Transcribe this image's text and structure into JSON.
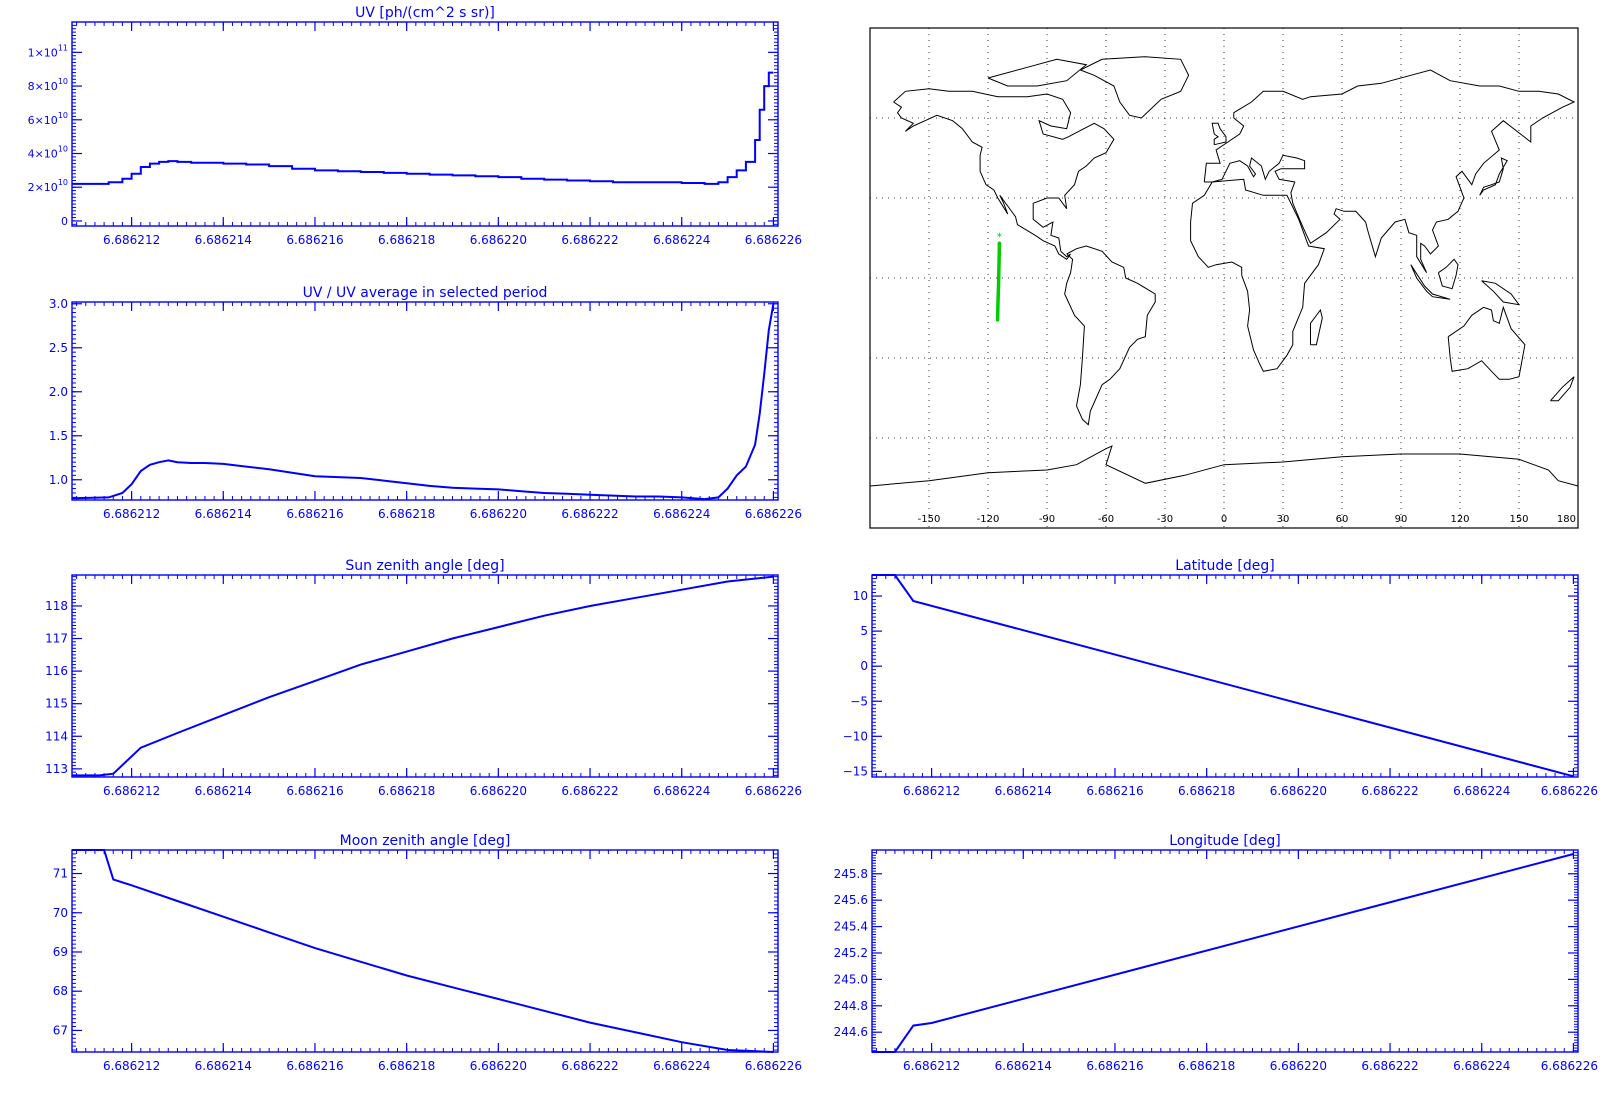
{
  "colors": {
    "plot": "#0000ff",
    "map_outline": "#000000",
    "track": "#00cc00",
    "background": "#ffffff"
  },
  "shared_x": {
    "ticks": [
      6.686212,
      6.686214,
      6.686216,
      6.686218,
      6.68622,
      6.686222,
      6.686224,
      6.686226
    ],
    "tick_labels": [
      "6.686212",
      "6.686214",
      "6.686216",
      "6.686218",
      "6.686220",
      "6.686222",
      "6.686224",
      "6.686226"
    ]
  },
  "chart_data": [
    {
      "id": "uv",
      "type": "line",
      "title": "UV [ph/(cm^2 s sr)]",
      "xlim": [
        6.6862107,
        6.6862261
      ],
      "ylim": [
        -3000000000.0,
        118000000000.0
      ],
      "yticks": [
        0,
        20000000000.0,
        40000000000.0,
        60000000000.0,
        80000000000.0,
        100000000000.0
      ],
      "ytick_labels": [
        {
          "base": "0",
          "exp": ""
        },
        {
          "base": "2×10",
          "exp": "10"
        },
        {
          "base": "4×10",
          "exp": "10"
        },
        {
          "base": "6×10",
          "exp": "10"
        },
        {
          "base": "8×10",
          "exp": "10"
        },
        {
          "base": "1×10",
          "exp": "11"
        }
      ],
      "step": true,
      "series": [
        {
          "x": [
            6.6862107,
            6.6862115,
            6.6862118,
            6.686212,
            6.6862122,
            6.6862124,
            6.6862126,
            6.6862128,
            6.686213,
            6.6862133,
            6.6862136,
            6.686214,
            6.6862145,
            6.686215,
            6.6862155,
            6.686216,
            6.6862165,
            6.686217,
            6.6862175,
            6.686218,
            6.6862185,
            6.686219,
            6.6862195,
            6.68622,
            6.6862205,
            6.686221,
            6.6862215,
            6.686222,
            6.6862225,
            6.686223,
            6.6862235,
            6.686224,
            6.6862245,
            6.6862248,
            6.686225,
            6.6862252,
            6.6862254,
            6.6862256,
            6.6862257,
            6.6862258,
            6.6862259,
            6.686226
          ],
          "y": [
            22000000000.0,
            23000000000.0,
            25000000000.0,
            28000000000.0,
            32000000000.0,
            34000000000.0,
            35000000000.0,
            35500000000.0,
            35000000000.0,
            34500000000.0,
            34500000000.0,
            34000000000.0,
            33500000000.0,
            32500000000.0,
            31000000000.0,
            30000000000.0,
            29500000000.0,
            29000000000.0,
            28500000000.0,
            28000000000.0,
            27500000000.0,
            27000000000.0,
            26500000000.0,
            26000000000.0,
            25000000000.0,
            24500000000.0,
            24000000000.0,
            23500000000.0,
            23000000000.0,
            23000000000.0,
            23000000000.0,
            22500000000.0,
            22000000000.0,
            23000000000.0,
            26000000000.0,
            30000000000.0,
            35000000000.0,
            48000000000.0,
            66000000000.0,
            80000000000.0,
            88000000000.0,
            88000000000.0
          ]
        }
      ]
    },
    {
      "id": "uv-ratio",
      "type": "line",
      "title": "UV / UV average in selected period",
      "xlim": [
        6.6862107,
        6.6862261
      ],
      "ylim": [
        0.77,
        3.02
      ],
      "yticks": [
        1.0,
        1.5,
        2.0,
        2.5,
        3.0
      ],
      "ytick_labels": [
        "1.0",
        "1.5",
        "2.0",
        "2.5",
        "3.0"
      ],
      "series": [
        {
          "x": [
            6.6862107,
            6.6862115,
            6.6862118,
            6.686212,
            6.6862122,
            6.6862124,
            6.6862126,
            6.6862128,
            6.686213,
            6.6862133,
            6.6862136,
            6.686214,
            6.6862145,
            6.686215,
            6.6862155,
            6.686216,
            6.6862165,
            6.686217,
            6.6862175,
            6.686218,
            6.6862185,
            6.686219,
            6.6862195,
            6.68622,
            6.6862205,
            6.686221,
            6.6862215,
            6.686222,
            6.6862225,
            6.686223,
            6.6862235,
            6.686224,
            6.6862245,
            6.6862248,
            6.686225,
            6.6862252,
            6.6862254,
            6.6862256,
            6.6862257,
            6.6862258,
            6.6862259,
            6.686226
          ],
          "y": [
            0.79,
            0.8,
            0.85,
            0.95,
            1.1,
            1.17,
            1.2,
            1.22,
            1.2,
            1.19,
            1.19,
            1.18,
            1.15,
            1.12,
            1.08,
            1.04,
            1.03,
            1.02,
            0.99,
            0.96,
            0.93,
            0.91,
            0.9,
            0.89,
            0.87,
            0.85,
            0.84,
            0.83,
            0.82,
            0.81,
            0.81,
            0.8,
            0.78,
            0.8,
            0.9,
            1.05,
            1.15,
            1.4,
            1.75,
            2.2,
            2.7,
            3.0
          ]
        }
      ]
    },
    {
      "id": "sun-zenith",
      "type": "line",
      "title": "Sun zenith angle [deg]",
      "xlim": [
        6.6862107,
        6.6862261
      ],
      "ylim": [
        112.75,
        118.95
      ],
      "yticks": [
        113,
        114,
        115,
        116,
        117,
        118
      ],
      "ytick_labels": [
        "113",
        "114",
        "115",
        "116",
        "117",
        "118"
      ],
      "series": [
        {
          "x": [
            6.6862107,
            6.6862113,
            6.6862116,
            6.6862122,
            6.686213,
            6.686214,
            6.686215,
            6.686216,
            6.686217,
            6.686218,
            6.686219,
            6.68622,
            6.686221,
            6.686222,
            6.686223,
            6.686224,
            6.686225,
            6.686226
          ],
          "y": [
            112.8,
            112.8,
            112.85,
            113.65,
            114.1,
            114.65,
            115.2,
            115.7,
            116.2,
            116.6,
            117.0,
            117.35,
            117.7,
            118.0,
            118.25,
            118.5,
            118.75,
            118.9
          ]
        }
      ]
    },
    {
      "id": "moon-zenith",
      "type": "line",
      "title": "Moon zenith angle [deg]",
      "xlim": [
        6.6862107,
        6.6862261
      ],
      "ylim": [
        66.45,
        71.6
      ],
      "yticks": [
        67,
        68,
        69,
        70,
        71
      ],
      "ytick_labels": [
        "67",
        "68",
        "69",
        "70",
        "71"
      ],
      "series": [
        {
          "x": [
            6.6862107,
            6.6862112,
            6.6862114,
            6.6862116,
            6.686212,
            6.686213,
            6.686214,
            6.686215,
            6.686216,
            6.686217,
            6.686218,
            6.686219,
            6.68622,
            6.686221,
            6.686222,
            6.686223,
            6.686224,
            6.686225,
            6.686226
          ],
          "y": [
            71.6,
            71.6,
            71.6,
            70.85,
            70.7,
            70.3,
            69.9,
            69.5,
            69.1,
            68.75,
            68.4,
            68.1,
            67.8,
            67.5,
            67.2,
            66.95,
            66.7,
            66.5,
            66.45
          ]
        }
      ]
    },
    {
      "id": "latitude",
      "type": "line",
      "title": "Latitude [deg]",
      "xlim": [
        6.6862107,
        6.6862261
      ],
      "ylim": [
        -15.8,
        13.0
      ],
      "yticks": [
        -15,
        -10,
        -5,
        0,
        5,
        10
      ],
      "ytick_labels": [
        "−15",
        "−10",
        "−5",
        "0",
        "5",
        "10"
      ],
      "series": [
        {
          "x": [
            6.6862107,
            6.6862112,
            6.6862116,
            6.686226
          ],
          "y": [
            13.0,
            13.0,
            9.3,
            -15.7
          ]
        }
      ]
    },
    {
      "id": "longitude",
      "type": "line",
      "title": "Longitude [deg]",
      "xlim": [
        6.6862107,
        6.6862261
      ],
      "ylim": [
        244.45,
        245.98
      ],
      "yticks": [
        244.6,
        244.8,
        245.0,
        245.2,
        245.4,
        245.6,
        245.8
      ],
      "ytick_labels": [
        "244.6",
        "244.8",
        "245.0",
        "245.2",
        "245.4",
        "245.6",
        "245.8"
      ],
      "series": [
        {
          "x": [
            6.6862107,
            6.6862112,
            6.6862116,
            6.686212,
            6.686226
          ],
          "y": [
            244.45,
            244.45,
            244.65,
            244.67,
            245.95
          ]
        }
      ]
    }
  ],
  "map": {
    "lon_ticks": [
      -150,
      -120,
      -90,
      -60,
      -30,
      0,
      30,
      60,
      90,
      120,
      150,
      180
    ],
    "lon_labels": [
      "-150",
      "-120",
      "-90",
      "-60",
      "-30",
      "0",
      "30",
      "60",
      "90",
      "120",
      "150",
      "180"
    ],
    "lat_grid": [
      -60,
      -30,
      0,
      30,
      60
    ],
    "track": {
      "lon": [
        -114.2,
        -114.4,
        -114.6,
        -114.9,
        -115.1
      ],
      "lat": [
        13.0,
        5.0,
        -2.0,
        -9.0,
        -15.7
      ],
      "start_marker": "*"
    }
  }
}
